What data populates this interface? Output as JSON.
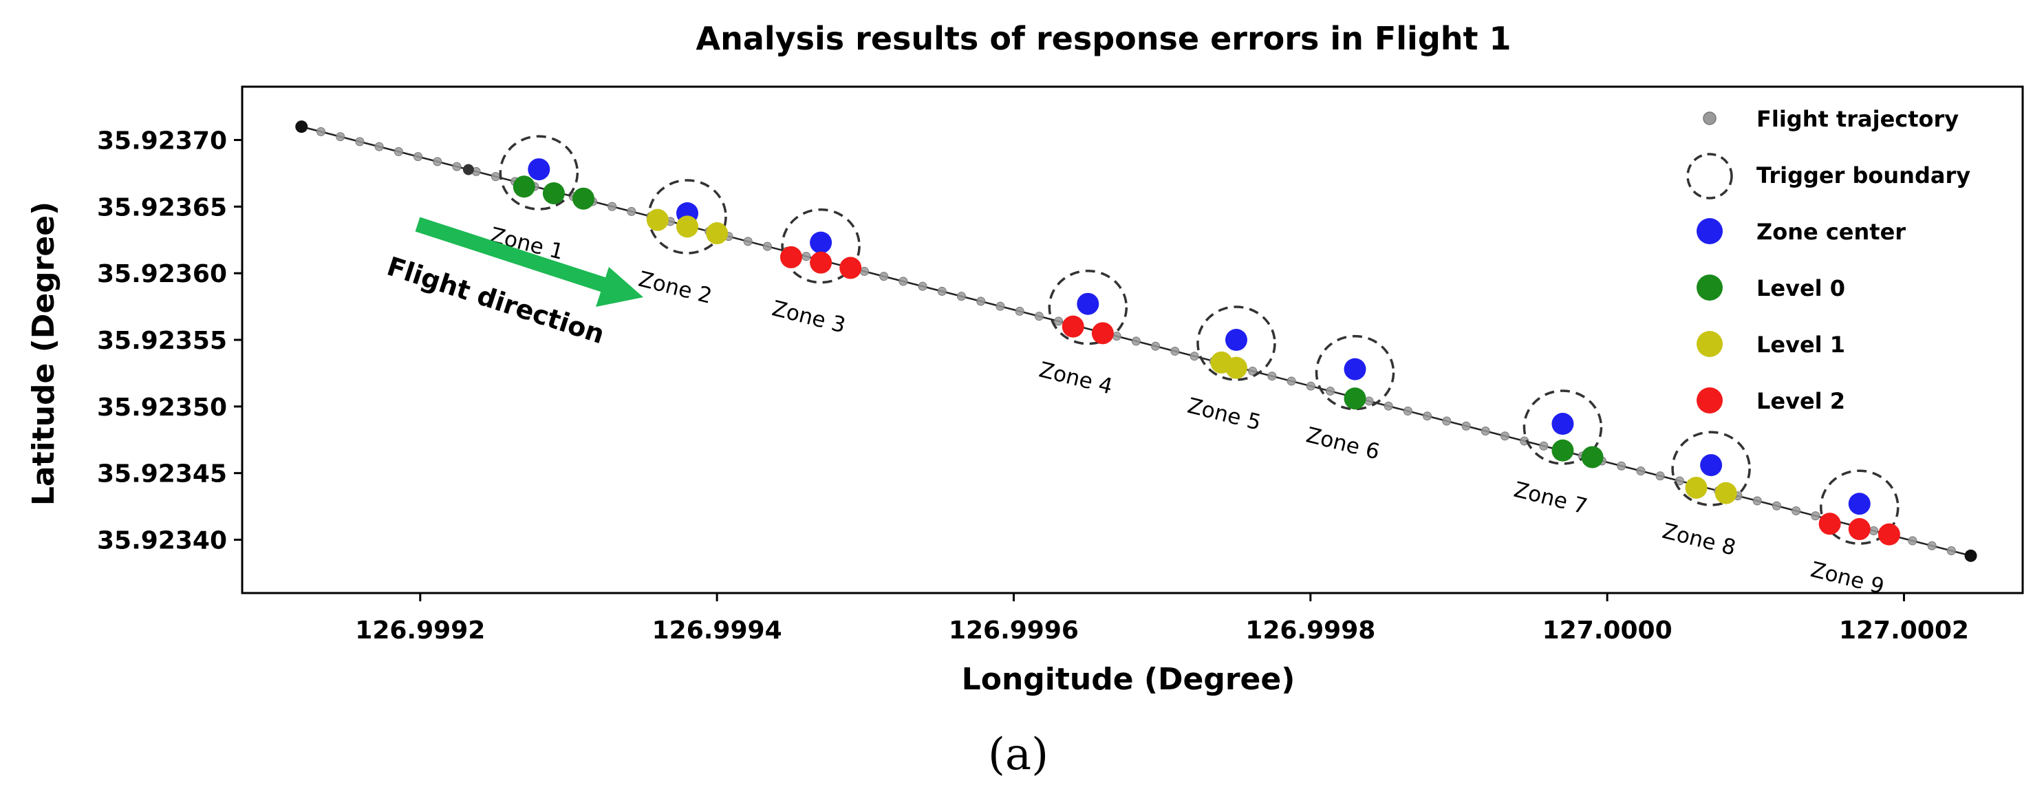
{
  "chart_data": {
    "type": "scatter",
    "title": "Analysis results of response errors in Flight 1",
    "xlabel": "Longitude (Degree)",
    "ylabel": "Latitude (Degree)",
    "xlim": [
      126.99908,
      127.00028
    ],
    "ylim": [
      35.92336,
      35.92374
    ],
    "x_ticks": [
      "126.9992",
      "126.9994",
      "126.9996",
      "126.9998",
      "127.0000",
      "127.0002"
    ],
    "x_tick_values": [
      126.9992,
      126.9994,
      126.9996,
      126.9998,
      127.0,
      127.0002
    ],
    "y_ticks": [
      "35.92340",
      "35.92345",
      "35.92350",
      "35.92355",
      "35.92360",
      "35.92365",
      "35.92370"
    ],
    "y_tick_values": [
      35.9234,
      35.92345,
      35.9235,
      35.92355,
      35.9236,
      35.92365,
      35.9237
    ],
    "trajectory": {
      "start": [
        126.99912,
        35.92371
      ],
      "end": [
        127.000245,
        35.923388
      ],
      "point_count": 87
    },
    "zones": [
      {
        "label": "Zone 1",
        "center": [
          126.99928,
          35.923678
        ],
        "points": [
          {
            "x": 126.99927,
            "y": 35.923665,
            "level": 0
          },
          {
            "x": 126.99929,
            "y": 35.92366,
            "level": 0
          },
          {
            "x": 126.99931,
            "y": 35.923656,
            "level": 0
          }
        ]
      },
      {
        "label": "Zone 2",
        "center": [
          126.99938,
          35.923645
        ],
        "points": [
          {
            "x": 126.99936,
            "y": 35.92364,
            "level": 1
          },
          {
            "x": 126.99938,
            "y": 35.923635,
            "level": 1
          },
          {
            "x": 126.9994,
            "y": 35.92363,
            "level": 1
          }
        ]
      },
      {
        "label": "Zone 3",
        "center": [
          126.99947,
          35.923623
        ],
        "points": [
          {
            "x": 126.99945,
            "y": 35.923612,
            "level": 2
          },
          {
            "x": 126.99947,
            "y": 35.923608,
            "level": 2
          },
          {
            "x": 126.99949,
            "y": 35.923604,
            "level": 2
          }
        ]
      },
      {
        "label": "Zone 4",
        "center": [
          126.99965,
          35.923577
        ],
        "points": [
          {
            "x": 126.99964,
            "y": 35.92356,
            "level": 2
          },
          {
            "x": 126.99966,
            "y": 35.923555,
            "level": 2
          }
        ]
      },
      {
        "label": "Zone 5",
        "center": [
          126.99975,
          35.92355
        ],
        "points": [
          {
            "x": 126.99974,
            "y": 35.923533,
            "level": 1
          },
          {
            "x": 126.99975,
            "y": 35.923529,
            "level": 1
          }
        ]
      },
      {
        "label": "Zone 6",
        "center": [
          126.99983,
          35.923528
        ],
        "points": [
          {
            "x": 126.99983,
            "y": 35.923506,
            "level": 0
          }
        ]
      },
      {
        "label": "Zone 7",
        "center": [
          126.99997,
          35.923487
        ],
        "points": [
          {
            "x": 126.99997,
            "y": 35.923467,
            "level": 0
          },
          {
            "x": 126.99999,
            "y": 35.923462,
            "level": 0
          }
        ]
      },
      {
        "label": "Zone 8",
        "center": [
          127.00007,
          35.923456
        ],
        "points": [
          {
            "x": 127.00006,
            "y": 35.923439,
            "level": 1
          },
          {
            "x": 127.00008,
            "y": 35.923435,
            "level": 1
          }
        ]
      },
      {
        "label": "Zone 9",
        "center": [
          127.00017,
          35.923427
        ],
        "points": [
          {
            "x": 127.00015,
            "y": 35.923412,
            "level": 2
          },
          {
            "x": 127.00017,
            "y": 35.923408,
            "level": 2
          },
          {
            "x": 127.00019,
            "y": 35.923404,
            "level": 2
          }
        ]
      }
    ],
    "legend": {
      "placement": "top-right",
      "entries": [
        {
          "label": "Flight trajectory",
          "key": "trajectory",
          "color": "#9a9a9a"
        },
        {
          "label": "Trigger boundary",
          "key": "boundary",
          "color": "#333333"
        },
        {
          "label": "Zone center",
          "key": "center",
          "color": "#1f1ff0"
        },
        {
          "label": "Level 0",
          "key": "level0",
          "color": "#1a8a1a"
        },
        {
          "label": "Level 1",
          "key": "level1",
          "color": "#c8c414"
        },
        {
          "label": "Level 2",
          "key": "level2",
          "color": "#f21a1a"
        }
      ]
    },
    "annotation": {
      "text": "Flight direction",
      "arrow_color": "#1db954"
    },
    "grid": false
  },
  "caption": "(a)"
}
